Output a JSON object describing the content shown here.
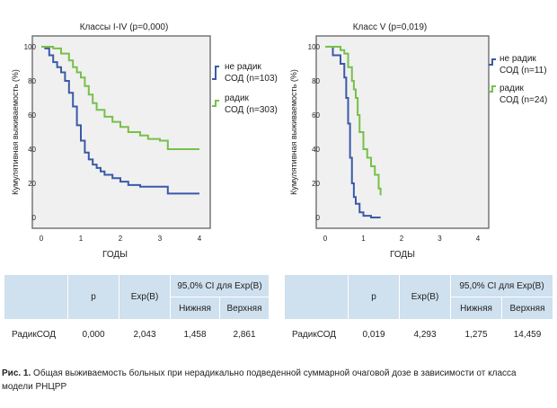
{
  "chart_data": [
    {
      "type": "line",
      "title": "Классы I-IV (p=0,000)",
      "xlabel": "ГОДЫ",
      "ylabel": "Кумулятивная выживаемость (%)",
      "xlim": [
        0,
        4
      ],
      "ylim": [
        0,
        100
      ],
      "xticks": [
        "0",
        "1",
        "2",
        "3",
        "4"
      ],
      "yticks": [
        "0",
        "20",
        "40",
        "60",
        "80",
        "100"
      ],
      "series": [
        {
          "name": "не радик СОД (n=103)",
          "color": "#3a5aa8",
          "x": [
            0,
            0.1,
            0.2,
            0.3,
            0.4,
            0.5,
            0.6,
            0.7,
            0.8,
            0.9,
            1.0,
            1.1,
            1.2,
            1.3,
            1.4,
            1.5,
            1.6,
            1.8,
            2.0,
            2.2,
            2.5,
            2.8,
            3.2,
            4.0
          ],
          "y": [
            100,
            99,
            95,
            91,
            88,
            85,
            80,
            73,
            65,
            54,
            45,
            38,
            34,
            31,
            29,
            27,
            25,
            23,
            21,
            19,
            18,
            18,
            14,
            14
          ]
        },
        {
          "name": "радик СОД (n=303)",
          "color": "#77c04a",
          "x": [
            0,
            0.1,
            0.3,
            0.5,
            0.7,
            0.8,
            0.9,
            1.0,
            1.1,
            1.2,
            1.3,
            1.4,
            1.6,
            1.8,
            2.0,
            2.2,
            2.5,
            2.7,
            3.0,
            3.2,
            4.0
          ],
          "y": [
            100,
            100,
            99,
            96,
            92,
            88,
            85,
            82,
            77,
            72,
            67,
            63,
            59,
            56,
            53,
            50,
            48,
            46,
            45,
            40,
            40
          ]
        }
      ],
      "legend_position": "right"
    },
    {
      "type": "line",
      "title": "Класс V (p=0,019)",
      "xlabel": "ГОДЫ",
      "ylabel": "Кумулятивная выживаемость (%)",
      "xlim": [
        0,
        4
      ],
      "ylim": [
        0,
        100
      ],
      "xticks": [
        "0",
        "1",
        "2",
        "3",
        "4"
      ],
      "yticks": [
        "0",
        "20",
        "40",
        "60",
        "80",
        "100"
      ],
      "series": [
        {
          "name": "не радик СОД (n=11)",
          "color": "#3a5aa8",
          "x": [
            0,
            0.1,
            0.2,
            0.3,
            0.4,
            0.5,
            0.55,
            0.6,
            0.65,
            0.7,
            0.75,
            0.8,
            0.9,
            1.0,
            1.2,
            1.45
          ],
          "y": [
            100,
            100,
            95,
            95,
            90,
            82,
            70,
            55,
            35,
            20,
            12,
            8,
            3,
            1,
            0,
            0
          ]
        },
        {
          "name": "радик СОД (n=24)",
          "color": "#77c04a",
          "x": [
            0,
            0.2,
            0.4,
            0.5,
            0.6,
            0.7,
            0.75,
            0.8,
            0.85,
            0.9,
            1.0,
            1.1,
            1.2,
            1.3,
            1.4,
            1.45
          ],
          "y": [
            100,
            100,
            98,
            96,
            88,
            80,
            75,
            70,
            60,
            50,
            40,
            35,
            30,
            25,
            17,
            13
          ]
        }
      ],
      "legend_position": "right"
    }
  ],
  "tables": [
    {
      "header": {
        "p": "p",
        "exp": "Exp(B)",
        "ci": "95,0% CI для Exp(B)",
        "lower": "Нижняя",
        "upper": "Верхняя"
      },
      "row": {
        "label": "РадикСОД",
        "p": "0,000",
        "exp": "2,043",
        "lower": "1,458",
        "upper": "2,861"
      }
    },
    {
      "header": {
        "p": "p",
        "exp": "Exp(B)",
        "ci": "95,0% CI для Exp(B)",
        "lower": "Нижняя",
        "upper": "Верхняя"
      },
      "row": {
        "label": "РадикСОД",
        "p": "0,019",
        "exp": "4,293",
        "lower": "1,275",
        "upper": "14,459"
      }
    }
  ],
  "caption": {
    "label": "Рис. 1.",
    "text": " Общая выживаемость больных при нерадикально подведенной суммарной очаговой дозе в зависимости от класса модели РНЦРР"
  }
}
